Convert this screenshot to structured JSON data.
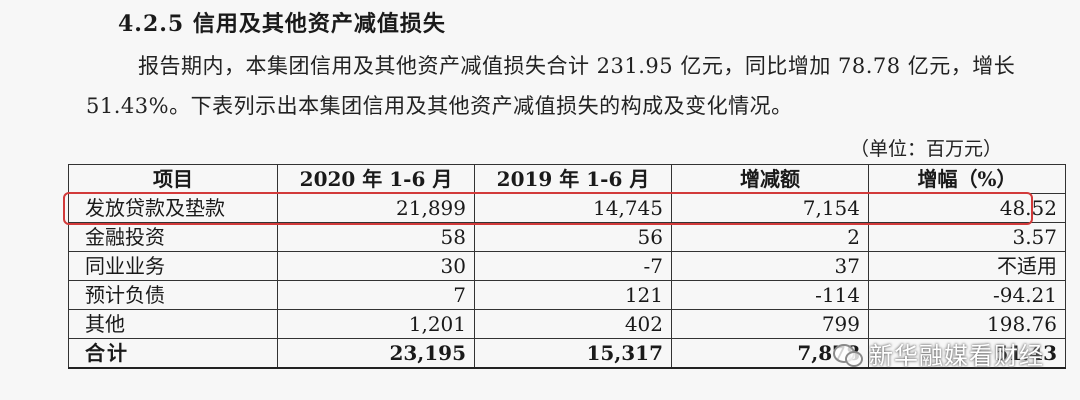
{
  "heading": "4.2.5 信用及其他资产减值损失",
  "paragraph": "报告期内，本集团信用及其他资产减值损失合计 231.95 亿元，同比增加 78.78 亿元，增长 51.43%。下表列示出本集团信用及其他资产减值损失的构成及变化情况。",
  "unit": "（单位：百万元）",
  "table": {
    "headers": [
      "项目",
      "2020 年 1-6 月",
      "2019 年 1-6 月",
      "增减额",
      "增幅（%）"
    ],
    "rows": [
      [
        "发放贷款及垫款",
        "21,899",
        "14,745",
        "7,154",
        "48.52"
      ],
      [
        "金融投资",
        "58",
        "56",
        "2",
        "3.57"
      ],
      [
        "同业业务",
        "30",
        "-7",
        "37",
        "不适用"
      ],
      [
        "预计负债",
        "7",
        "121",
        "-114",
        "-94.21"
      ],
      [
        "其他",
        "1,201",
        "402",
        "799",
        "198.76"
      ]
    ],
    "total": [
      "合计",
      "23,195",
      "15,317",
      "7,878",
      "51.43"
    ]
  },
  "watermark": "新华融媒看财经",
  "colors": {
    "highlight": "#d23a3a",
    "background": "#f7f7f7"
  }
}
